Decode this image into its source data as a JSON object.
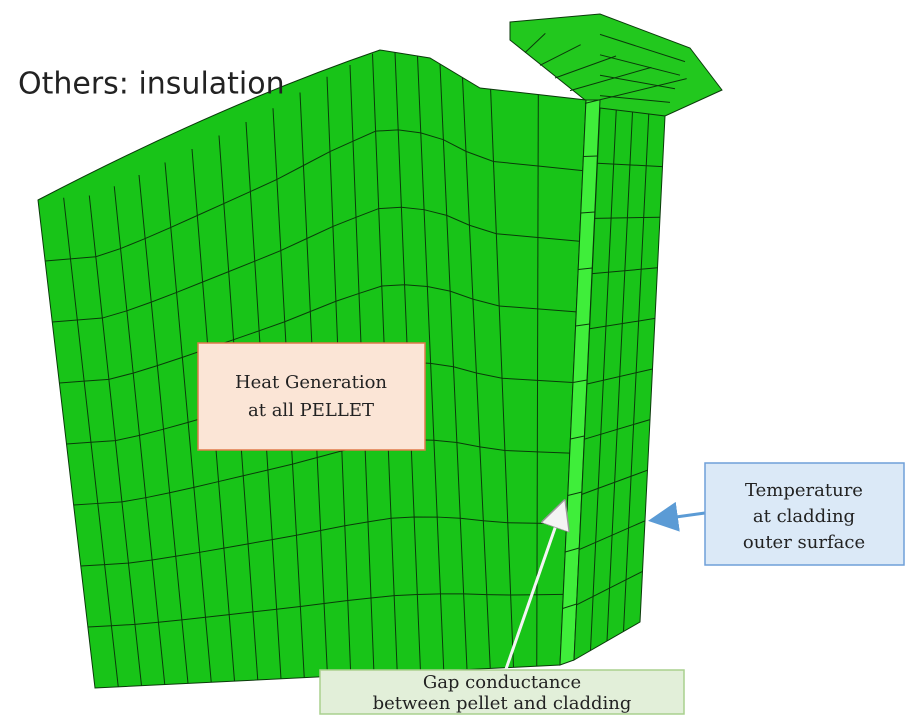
{
  "title": "Others: insulation",
  "annotations": [
    {
      "lines": [
        "Heat Generation",
        "at all PELLET"
      ]
    },
    {
      "lines": [
        "Temperature",
        "at cladding",
        "outer surface"
      ]
    },
    {
      "lines": [
        "Gap conductance",
        "between pellet and cladding"
      ]
    }
  ]
}
